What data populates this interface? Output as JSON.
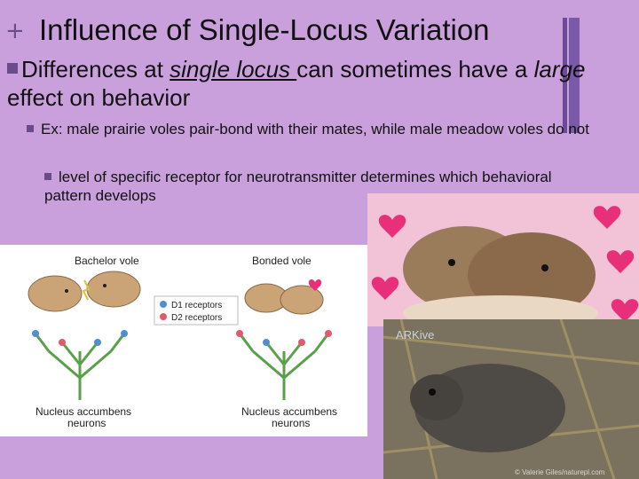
{
  "slide": {
    "title": "Influence of Single-Locus Variation",
    "bullet1": {
      "pre": "Differences at ",
      "underlined": "single locus ",
      "mid": "can sometimes have a ",
      "italic": "large",
      "post": " effect on behavior"
    },
    "bullet2": "Ex: male prairie voles pair-bond with their mates, while male meadow voles do not",
    "bullet3": "level of specific receptor for neurotransmitter determines which behavioral pattern develops"
  },
  "diagram": {
    "bachelor_label": "Bachelor vole",
    "bonded_label": "Bonded vole",
    "legend_d1": "D1 receptors",
    "legend_d2": "D2 receptors",
    "nucleus_left_line1": "Nucleus accumbens",
    "nucleus_left_line2": "neurons",
    "nucleus_right_line1": "Nucleus accumbens",
    "nucleus_right_line2": "neurons"
  },
  "photos": {
    "arkive_watermark": "ARKive",
    "copyright": "© Valerie Giles/naturepl.com"
  },
  "colors": {
    "background": "#c9a0dc",
    "accent": "#6a4c8a",
    "heart": "#e8307a"
  },
  "icons": {
    "plus": "plus-icon",
    "bullet": "square-bullet-icon",
    "heart": "heart-icon"
  }
}
